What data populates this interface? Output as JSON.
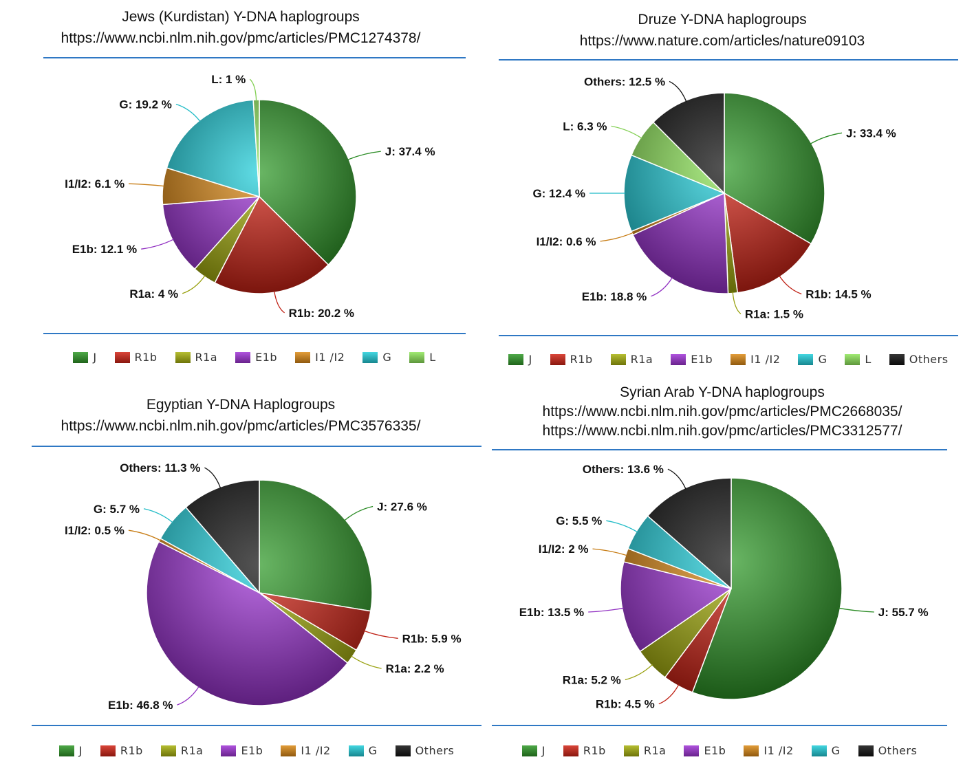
{
  "colors": {
    "J": "#2f9a28",
    "R1b": "#d42416",
    "R1a": "#a9b20e",
    "E1b": "#a135d8",
    "I1I2": "#dd8a16",
    "G": "#22d0dc",
    "L": "#8fe65a",
    "Others": "#111111"
  },
  "chart_data": [
    {
      "type": "pie",
      "title": "Jews (Kurdistan) Y-DNA haplogroups",
      "subtitle_lines": [
        "https://www.ncbi.nlm.nih.gov/pmc/articles/PMC1274378/"
      ],
      "slices": [
        {
          "key": "J",
          "name": "J",
          "value": 37.4,
          "label": "J: 37.4 %"
        },
        {
          "key": "R1b",
          "name": "R1b",
          "value": 20.2,
          "label": "R1b: 20.2 %"
        },
        {
          "key": "R1a",
          "name": "R1a",
          "value": 4,
          "label": "R1a: 4 %"
        },
        {
          "key": "E1b",
          "name": "E1b",
          "value": 12.1,
          "label": "E1b: 12.1 %"
        },
        {
          "key": "I1I2",
          "name": "I1/I2",
          "value": 6.1,
          "label": "I1/I2: 6.1 %"
        },
        {
          "key": "G",
          "name": "G",
          "value": 19.2,
          "label": "G: 19.2 %"
        },
        {
          "key": "L",
          "name": "L",
          "value": 1,
          "label": "L: 1 %"
        }
      ],
      "legend": [
        "J",
        "R1b",
        "R1a",
        "E1b",
        "I1 /I2",
        "G",
        "L"
      ]
    },
    {
      "type": "pie",
      "title": "Druze Y-DNA haplogroups",
      "subtitle_lines": [
        "https://www.nature.com/articles/nature09103"
      ],
      "slices": [
        {
          "key": "J",
          "name": "J",
          "value": 33.4,
          "label": "J: 33.4 %"
        },
        {
          "key": "R1b",
          "name": "R1b",
          "value": 14.5,
          "label": "R1b: 14.5 %"
        },
        {
          "key": "R1a",
          "name": "R1a",
          "value": 1.5,
          "label": "R1a: 1.5 %"
        },
        {
          "key": "E1b",
          "name": "E1b",
          "value": 18.8,
          "label": "E1b: 18.8 %"
        },
        {
          "key": "I1I2",
          "name": "I1/I2",
          "value": 0.6,
          "label": "I1/I2: 0.6 %"
        },
        {
          "key": "G",
          "name": "G",
          "value": 12.4,
          "label": "G: 12.4 %"
        },
        {
          "key": "L",
          "name": "L",
          "value": 6.3,
          "label": "L: 6.3 %"
        },
        {
          "key": "Others",
          "name": "Others",
          "value": 12.5,
          "label": "Others: 12.5 %"
        }
      ],
      "legend": [
        "J",
        "R1b",
        "R1a",
        "E1b",
        "I1 /I2",
        "G",
        "L",
        "Others"
      ]
    },
    {
      "type": "pie",
      "title": "Egyptian Y-DNA Haplogroups",
      "subtitle_lines": [
        "https://www.ncbi.nlm.nih.gov/pmc/articles/PMC3576335/"
      ],
      "slices": [
        {
          "key": "J",
          "name": "J",
          "value": 27.6,
          "label": "J: 27.6 %"
        },
        {
          "key": "R1b",
          "name": "R1b",
          "value": 5.9,
          "label": "R1b: 5.9 %"
        },
        {
          "key": "R1a",
          "name": "R1a",
          "value": 2.2,
          "label": "R1a: 2.2 %"
        },
        {
          "key": "E1b",
          "name": "E1b",
          "value": 46.8,
          "label": "E1b: 46.8 %"
        },
        {
          "key": "I1I2",
          "name": "I1/I2",
          "value": 0.5,
          "label": "I1/I2: 0.5 %"
        },
        {
          "key": "G",
          "name": "G",
          "value": 5.7,
          "label": "G: 5.7 %"
        },
        {
          "key": "Others",
          "name": "Others",
          "value": 11.3,
          "label": "Others: 11.3 %"
        }
      ],
      "legend": [
        "J",
        "R1b",
        "R1a",
        "E1b",
        "I1 /I2",
        "G",
        "Others"
      ]
    },
    {
      "type": "pie",
      "title": "Syrian Arab Y-DNA haplogroups",
      "subtitle_lines": [
        "https://www.ncbi.nlm.nih.gov/pmc/articles/PMC2668035/",
        "https://www.ncbi.nlm.nih.gov/pmc/articles/PMC3312577/"
      ],
      "slices": [
        {
          "key": "J",
          "name": "J",
          "value": 55.7,
          "label": "J: 55.7 %"
        },
        {
          "key": "R1b",
          "name": "R1b",
          "value": 4.5,
          "label": "R1b: 4.5 %"
        },
        {
          "key": "R1a",
          "name": "R1a",
          "value": 5.2,
          "label": "R1a: 5.2 %"
        },
        {
          "key": "E1b",
          "name": "E1b",
          "value": 13.5,
          "label": "E1b: 13.5 %"
        },
        {
          "key": "I1I2",
          "name": "I1/I2",
          "value": 2,
          "label": "I1/I2: 2 %"
        },
        {
          "key": "G",
          "name": "G",
          "value": 5.5,
          "label": "G: 5.5 %"
        },
        {
          "key": "Others",
          "name": "Others",
          "value": 13.6,
          "label": "Others: 13.6 %"
        }
      ],
      "legend": [
        "J",
        "R1b",
        "R1a",
        "E1b",
        "I1 /I2",
        "G",
        "Others"
      ]
    }
  ]
}
